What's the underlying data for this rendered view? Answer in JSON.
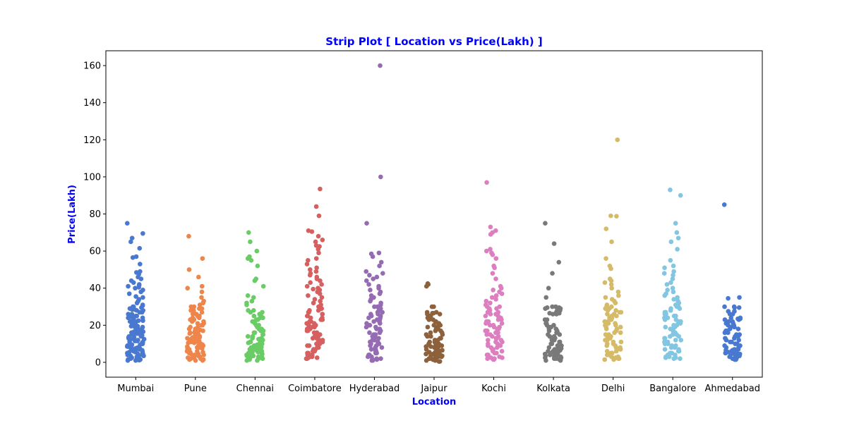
{
  "chart_data": {
    "type": "scatter",
    "subtype": "strip",
    "title": "Strip Plot [ Location vs Price(Lakh) ]",
    "xlabel": "Location",
    "ylabel": "Price(Lakh)",
    "ylim": [
      -8,
      168
    ],
    "yticks": [
      0,
      20,
      40,
      60,
      80,
      100,
      120,
      140,
      160
    ],
    "grid": false,
    "legend": "none",
    "title_color": "#0000ff",
    "label_color": "#0000ff",
    "categories": [
      "Mumbai",
      "Pune",
      "Chennai",
      "Coimbatore",
      "Hyderabad",
      "Jaipur",
      "Kochi",
      "Kolkata",
      "Delhi",
      "Bangalore",
      "Ahmedabad"
    ],
    "colors": [
      "#4878d0",
      "#ee854a",
      "#6acc64",
      "#d65f5f",
      "#956cb4",
      "#8c613c",
      "#dc7ec0",
      "#797979",
      "#d5bb67",
      "#82c6e2",
      "#4878d0"
    ],
    "series": [
      {
        "values": [
          75,
          69.5,
          67,
          65,
          61.5,
          57,
          56.5,
          53,
          49,
          48.5,
          47.5,
          46,
          45,
          44,
          43,
          42,
          41.5,
          41,
          40.5,
          40,
          39,
          38,
          37,
          35.5,
          35,
          34,
          33,
          32,
          31,
          30.5,
          30,
          29.5,
          29,
          28.5,
          28,
          27,
          26,
          25,
          24.5,
          24,
          23,
          22.5,
          22,
          21,
          20.5,
          20,
          19.5,
          19,
          18,
          17.5,
          17,
          16.5,
          16,
          15.5,
          15,
          14.5,
          14,
          13.5,
          13,
          12.5,
          12,
          11.5,
          11,
          10.5,
          10,
          9.5,
          9,
          8.5,
          8,
          7.5,
          7,
          6.5,
          6,
          5.5,
          5,
          4.5,
          4,
          3.5,
          3,
          2.5,
          2,
          1.5,
          1.2,
          1
        ]
      },
      {
        "values": [
          68,
          56,
          50,
          46,
          41,
          40,
          38,
          35,
          33,
          32,
          31,
          30,
          29,
          28,
          27,
          26,
          25,
          24,
          23,
          22,
          21,
          20,
          19,
          18,
          17.5,
          17,
          16,
          15.5,
          15,
          14,
          13.5,
          13,
          12,
          11.5,
          11,
          10.5,
          10,
          9.5,
          9,
          8.5,
          8,
          7.5,
          7,
          6.5,
          6,
          5.5,
          5,
          4.5,
          4,
          3.5,
          3,
          2.5,
          2,
          1.5,
          1
        ]
      },
      {
        "values": [
          70,
          65,
          60,
          57,
          56,
          55,
          52,
          45,
          44,
          41,
          36,
          35,
          33,
          32,
          31,
          28,
          27,
          26,
          25,
          24,
          23,
          22,
          21,
          20,
          19,
          18,
          17,
          16,
          15,
          14,
          13,
          12.5,
          12,
          11,
          10.5,
          10,
          9.5,
          9,
          8.5,
          8,
          7.5,
          7,
          6.5,
          6,
          5.5,
          5,
          4.5,
          4,
          3.5,
          3,
          2.5,
          2,
          1.5,
          1
        ]
      },
      {
        "values": [
          93.5,
          84,
          79,
          71,
          70.5,
          68,
          66,
          65,
          63,
          62.5,
          61,
          59,
          56,
          55,
          53,
          51,
          50,
          49,
          48,
          47,
          46,
          45,
          44,
          43,
          42,
          41,
          40,
          39.5,
          39,
          38,
          37,
          36,
          35,
          34,
          33,
          32,
          31,
          30,
          29,
          28,
          27,
          26,
          25,
          24,
          23,
          22,
          21,
          20,
          19,
          18,
          17,
          16,
          15,
          14,
          13,
          12,
          11,
          10,
          9,
          8,
          7,
          6,
          5,
          4,
          3,
          2.5,
          2
        ]
      },
      {
        "values": [
          160,
          100,
          75,
          59,
          58.5,
          57,
          54,
          52,
          49,
          48,
          47,
          46,
          45,
          44,
          42,
          41,
          40,
          39,
          38,
          37,
          36,
          35,
          34,
          33,
          32,
          31,
          30,
          29,
          28,
          27,
          26,
          25,
          24,
          23,
          22,
          21,
          20,
          19,
          18,
          17,
          16,
          15,
          14,
          13,
          12,
          11,
          10,
          9,
          8,
          7,
          6,
          5,
          4,
          3,
          2,
          1.5,
          1
        ]
      },
      {
        "values": [
          42.5,
          42,
          41,
          30,
          27,
          26.5,
          26,
          25,
          24,
          23,
          22,
          21,
          20,
          19,
          18,
          17,
          16,
          15,
          14,
          13,
          12,
          11,
          10,
          9.5,
          9,
          8.5,
          8,
          7.5,
          7,
          6.5,
          6,
          5.5,
          5,
          4.5,
          4,
          3.5,
          3,
          2.5,
          2,
          1.5,
          1,
          0.5
        ]
      },
      {
        "values": [
          97,
          73,
          71,
          70,
          69,
          61,
          60,
          59,
          58,
          56,
          52,
          51,
          48,
          45,
          41,
          40,
          39,
          38,
          37,
          36,
          35,
          34,
          33,
          32,
          31,
          30,
          29,
          28,
          27,
          26,
          25,
          24,
          23,
          22,
          21,
          20,
          19,
          18,
          17,
          16,
          15,
          14,
          13,
          12,
          11,
          10,
          9,
          8,
          7,
          6,
          5,
          4,
          3,
          2.5,
          2,
          1.5
        ]
      },
      {
        "values": [
          75,
          64,
          54,
          48,
          40,
          35,
          30,
          29.5,
          29,
          28,
          27,
          26.5,
          26,
          23,
          21,
          20,
          19,
          18,
          17,
          16,
          15,
          14,
          13,
          12,
          11,
          10,
          9,
          8,
          7.5,
          7,
          6.5,
          6,
          5.5,
          5,
          4.5,
          4,
          3.5,
          3,
          2.5,
          2,
          1.5,
          1
        ]
      },
      {
        "values": [
          120,
          79,
          78.8,
          72,
          65,
          56,
          52,
          50.5,
          45,
          44,
          43,
          42,
          40,
          38,
          36,
          35,
          34,
          33,
          32,
          31,
          30,
          29,
          28,
          27,
          26,
          25,
          24,
          23,
          22,
          21,
          20,
          19,
          18,
          17,
          16,
          15,
          14,
          13,
          12,
          11,
          10,
          9,
          8,
          7,
          6,
          5,
          4,
          3,
          2.5,
          2,
          1.5
        ]
      },
      {
        "values": [
          93,
          90,
          75,
          70,
          67,
          65,
          61,
          55,
          52,
          51,
          49,
          48,
          47,
          45,
          43,
          42,
          40,
          39,
          38,
          37,
          36,
          35,
          34,
          33,
          32,
          31,
          30,
          29,
          28,
          27,
          26,
          25,
          24,
          23,
          22,
          21,
          20,
          19,
          18,
          17,
          16,
          15,
          14,
          13,
          12,
          11,
          10,
          9,
          8,
          7,
          6,
          5,
          4,
          3,
          2.5,
          2
        ]
      },
      {
        "values": [
          85,
          35,
          34.5,
          30,
          29.5,
          27.5,
          26,
          24,
          23.5,
          23,
          22,
          21,
          20,
          19,
          18,
          17,
          16,
          15,
          14,
          13,
          12,
          11,
          10,
          9,
          8,
          7,
          6.5,
          6,
          5.5,
          5,
          4.5,
          4,
          3.5,
          3,
          2.5,
          2,
          1.5
        ]
      }
    ]
  }
}
